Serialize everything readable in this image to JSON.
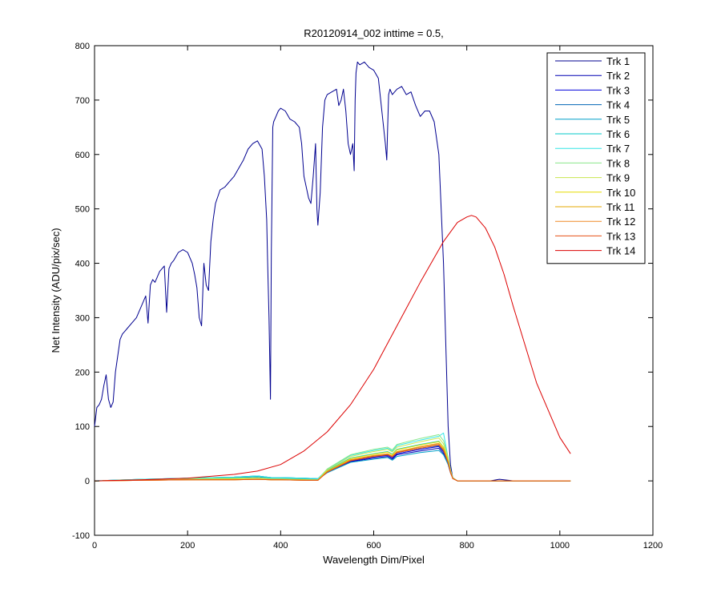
{
  "chart_data": {
    "type": "line",
    "title": "R20120914_002 inttime = 0.5,",
    "xlabel": "Wavelength Dim/Pixel",
    "ylabel": "Net Intensity (ADU/pix/sec)",
    "xlim": [
      0,
      1200
    ],
    "ylim": [
      -100,
      800
    ],
    "xticks": [
      0,
      200,
      400,
      600,
      800,
      1000,
      1200
    ],
    "yticks": [
      -100,
      0,
      100,
      200,
      300,
      400,
      500,
      600,
      700,
      800
    ],
    "grid": false,
    "legend_position": "top-right",
    "series": [
      {
        "name": "Trk 1",
        "color": "#00008f",
        "x": [
          0,
          5,
          10,
          15,
          20,
          25,
          30,
          35,
          40,
          45,
          50,
          55,
          60,
          65,
          70,
          80,
          90,
          100,
          110,
          115,
          120,
          125,
          130,
          140,
          150,
          155,
          160,
          165,
          170,
          180,
          190,
          200,
          210,
          215,
          220,
          225,
          230,
          235,
          240,
          245,
          250,
          255,
          260,
          270,
          280,
          290,
          300,
          310,
          320,
          330,
          340,
          350,
          360,
          365,
          370,
          372,
          375,
          378,
          380,
          383,
          385,
          390,
          395,
          400,
          410,
          420,
          430,
          440,
          445,
          450,
          455,
          460,
          465,
          470,
          475,
          478,
          480,
          485,
          490,
          495,
          500,
          510,
          520,
          525,
          530,
          535,
          540,
          545,
          550,
          555,
          558,
          560,
          562,
          565,
          570,
          580,
          590,
          600,
          610,
          615,
          620,
          625,
          628,
          630,
          632,
          635,
          640,
          650,
          660,
          670,
          680,
          690,
          700,
          710,
          720,
          730,
          740,
          745,
          750,
          755,
          760,
          765,
          770,
          780,
          800,
          820,
          850,
          870,
          900,
          950,
          1000,
          1023
        ],
        "y": [
          100,
          135,
          140,
          150,
          175,
          195,
          150,
          135,
          145,
          200,
          230,
          260,
          270,
          275,
          280,
          290,
          300,
          320,
          340,
          290,
          360,
          370,
          365,
          385,
          395,
          310,
          390,
          400,
          405,
          420,
          425,
          420,
          400,
          380,
          355,
          300,
          285,
          400,
          360,
          350,
          440,
          480,
          510,
          535,
          540,
          550,
          560,
          575,
          590,
          610,
          620,
          625,
          610,
          560,
          480,
          400,
          300,
          150,
          420,
          650,
          660,
          670,
          680,
          685,
          680,
          665,
          660,
          650,
          620,
          560,
          540,
          520,
          510,
          560,
          620,
          500,
          470,
          530,
          650,
          700,
          710,
          715,
          720,
          690,
          700,
          720,
          680,
          620,
          600,
          620,
          570,
          700,
          750,
          770,
          765,
          770,
          760,
          755,
          740,
          700,
          660,
          620,
          590,
          650,
          710,
          720,
          710,
          720,
          725,
          710,
          715,
          690,
          670,
          680,
          680,
          660,
          600,
          500,
          400,
          250,
          100,
          30,
          5,
          0,
          0,
          0,
          0,
          3,
          0,
          0,
          0,
          0
        ]
      },
      {
        "name": "Trk 2",
        "color": "#0000b4",
        "x": [
          0,
          100,
          200,
          300,
          350,
          380,
          400,
          450,
          480,
          500,
          550,
          600,
          630,
          640,
          650,
          700,
          740,
          750,
          760,
          765,
          770,
          780,
          800,
          900,
          1023
        ],
        "y": [
          0,
          2,
          4,
          6,
          8,
          5,
          5,
          4,
          3,
          15,
          35,
          42,
          45,
          40,
          48,
          55,
          60,
          50,
          30,
          15,
          5,
          0,
          0,
          0,
          0
        ]
      },
      {
        "name": "Trk 3",
        "color": "#0000dc",
        "x": [
          0,
          100,
          200,
          300,
          350,
          380,
          400,
          450,
          480,
          500,
          550,
          600,
          630,
          640,
          650,
          700,
          740,
          750,
          760,
          765,
          770,
          780,
          800,
          900,
          1023
        ],
        "y": [
          0,
          2,
          4,
          6,
          8,
          5,
          5,
          4,
          3,
          16,
          36,
          44,
          47,
          42,
          50,
          58,
          63,
          53,
          32,
          16,
          5,
          0,
          0,
          0,
          0
        ]
      },
      {
        "name": "Trk 4",
        "color": "#0064b4",
        "x": [
          0,
          100,
          200,
          300,
          350,
          380,
          400,
          450,
          480,
          500,
          550,
          600,
          630,
          640,
          650,
          700,
          740,
          750,
          760,
          765,
          770,
          780,
          800,
          900,
          1023
        ],
        "y": [
          0,
          3,
          5,
          7,
          9,
          6,
          6,
          5,
          4,
          17,
          38,
          46,
          49,
          44,
          52,
          60,
          65,
          55,
          33,
          16,
          5,
          0,
          0,
          0,
          0
        ]
      },
      {
        "name": "Trk 5",
        "color": "#00a0c8",
        "x": [
          0,
          100,
          200,
          300,
          350,
          380,
          400,
          450,
          480,
          500,
          550,
          600,
          630,
          640,
          650,
          700,
          740,
          750,
          760,
          765,
          770,
          780,
          800,
          900,
          1023
        ],
        "y": [
          0,
          2,
          4,
          6,
          8,
          5,
          5,
          4,
          3,
          15,
          34,
          40,
          43,
          38,
          45,
          52,
          56,
          48,
          30,
          15,
          5,
          0,
          0,
          0,
          0
        ]
      },
      {
        "name": "Trk 6",
        "color": "#00c8c8",
        "x": [
          0,
          100,
          200,
          300,
          350,
          380,
          400,
          450,
          480,
          500,
          550,
          600,
          630,
          640,
          650,
          700,
          740,
          750,
          760,
          765,
          770,
          780,
          800,
          900,
          1023
        ],
        "y": [
          0,
          3,
          5,
          7,
          9,
          6,
          6,
          5,
          4,
          19,
          42,
          50,
          54,
          49,
          58,
          67,
          73,
          62,
          37,
          18,
          6,
          0,
          0,
          0,
          0
        ]
      },
      {
        "name": "Trk 7",
        "color": "#32e6e6",
        "x": [
          0,
          100,
          200,
          300,
          350,
          380,
          400,
          450,
          480,
          500,
          550,
          600,
          630,
          640,
          650,
          700,
          740,
          750,
          760,
          765,
          770,
          780,
          800,
          900,
          1023
        ],
        "y": [
          0,
          3,
          5,
          7,
          9,
          6,
          6,
          5,
          4,
          21,
          47,
          56,
          60,
          55,
          65,
          75,
          82,
          88,
          42,
          20,
          6,
          0,
          0,
          0,
          0
        ]
      },
      {
        "name": "Trk 8",
        "color": "#8ae68a",
        "x": [
          0,
          100,
          200,
          300,
          350,
          380,
          400,
          450,
          480,
          500,
          550,
          600,
          630,
          640,
          650,
          700,
          740,
          750,
          760,
          765,
          770,
          780,
          800,
          900,
          1023
        ],
        "y": [
          0,
          2,
          4,
          5,
          6,
          4,
          4,
          3,
          2,
          22,
          48,
          58,
          62,
          57,
          67,
          78,
          85,
          74,
          44,
          21,
          6,
          0,
          0,
          0,
          0
        ]
      },
      {
        "name": "Trk 9",
        "color": "#c8e650",
        "x": [
          0,
          100,
          200,
          300,
          350,
          380,
          400,
          450,
          480,
          500,
          550,
          600,
          630,
          640,
          650,
          700,
          740,
          750,
          760,
          765,
          770,
          780,
          800,
          900,
          1023
        ],
        "y": [
          0,
          2,
          3,
          4,
          5,
          3,
          3,
          2,
          2,
          20,
          45,
          54,
          58,
          53,
          62,
          72,
          79,
          68,
          40,
          19,
          5,
          0,
          0,
          0,
          0
        ]
      },
      {
        "name": "Trk 10",
        "color": "#e6dc00",
        "x": [
          0,
          100,
          200,
          300,
          350,
          380,
          400,
          450,
          480,
          500,
          550,
          600,
          630,
          640,
          650,
          700,
          740,
          750,
          760,
          765,
          770,
          780,
          800,
          900,
          1023
        ],
        "y": [
          0,
          1,
          2,
          3,
          3,
          2,
          2,
          2,
          1,
          18,
          41,
          49,
          53,
          48,
          57,
          66,
          72,
          62,
          37,
          17,
          5,
          0,
          0,
          0,
          0
        ]
      },
      {
        "name": "Trk 11",
        "color": "#e6aa00",
        "x": [
          0,
          100,
          200,
          300,
          350,
          380,
          400,
          450,
          480,
          500,
          550,
          600,
          630,
          640,
          650,
          700,
          740,
          750,
          760,
          765,
          770,
          780,
          800,
          900,
          1023
        ],
        "y": [
          0,
          1,
          2,
          2,
          3,
          2,
          2,
          1,
          1,
          17,
          39,
          47,
          50,
          46,
          54,
          63,
          69,
          59,
          35,
          16,
          5,
          0,
          0,
          0,
          0
        ]
      },
      {
        "name": "Trk 12",
        "color": "#f08c28",
        "x": [
          0,
          100,
          200,
          300,
          350,
          380,
          400,
          450,
          480,
          500,
          550,
          600,
          630,
          640,
          650,
          700,
          740,
          750,
          760,
          765,
          770,
          780,
          800,
          900,
          1023
        ],
        "y": [
          0,
          1,
          2,
          2,
          3,
          2,
          2,
          1,
          1,
          17,
          38,
          46,
          49,
          45,
          53,
          62,
          68,
          58,
          34,
          16,
          5,
          0,
          0,
          0,
          0
        ]
      },
      {
        "name": "Trk 13",
        "color": "#e65014",
        "x": [
          0,
          100,
          200,
          300,
          350,
          380,
          400,
          450,
          480,
          500,
          550,
          600,
          630,
          640,
          650,
          700,
          740,
          750,
          760,
          765,
          770,
          780,
          800,
          900,
          1023
        ],
        "y": [
          0,
          1,
          2,
          2,
          3,
          2,
          2,
          1,
          1,
          16,
          37,
          45,
          48,
          44,
          52,
          60,
          66,
          56,
          33,
          15,
          4,
          0,
          0,
          0,
          0
        ]
      },
      {
        "name": "Trk 14",
        "color": "#dc0000",
        "x": [
          0,
          100,
          200,
          300,
          350,
          400,
          450,
          500,
          550,
          600,
          650,
          700,
          750,
          780,
          800,
          810,
          820,
          840,
          860,
          880,
          900,
          950,
          1000,
          1023
        ],
        "y": [
          0,
          2,
          5,
          12,
          18,
          30,
          55,
          90,
          140,
          205,
          285,
          365,
          440,
          475,
          485,
          488,
          485,
          465,
          430,
          380,
          320,
          180,
          80,
          50
        ]
      }
    ]
  }
}
